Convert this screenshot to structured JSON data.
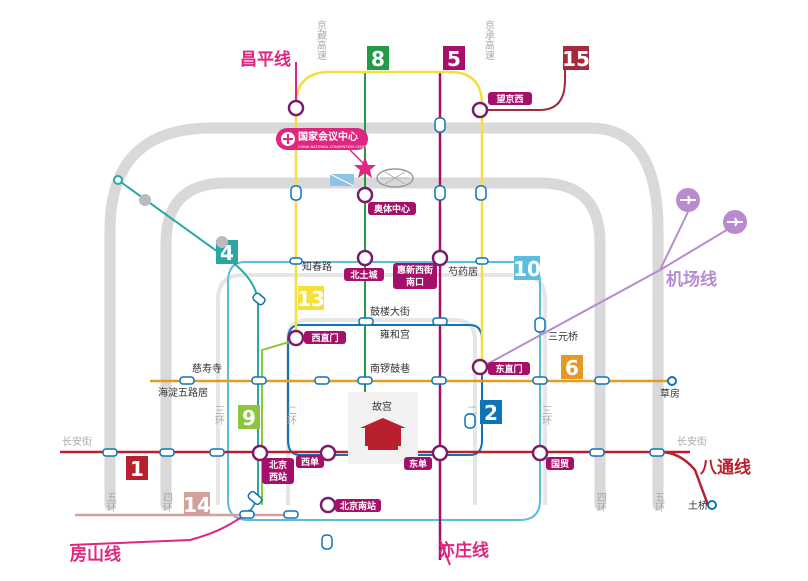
{
  "roads": {
    "west_ring5": "五环",
    "west_ring4": "四环",
    "west_ring3": "三环",
    "west_ring2": "二环",
    "east_ring2": "二环",
    "east_ring3": "三环",
    "east_ring4": "四环",
    "east_ring5": "五环",
    "north_west_expwy": "京藏高速",
    "north_east_expwy": "京承高速",
    "changan_west": "长安街",
    "changan_east": "长安街"
  },
  "lines": {
    "l1": "1",
    "l2": "2",
    "l4": "4",
    "l5": "5",
    "l6": "6",
    "l8": "8",
    "l9": "9",
    "l10": "10",
    "l13": "13",
    "l14": "14",
    "l15": "15",
    "changping": "昌平线",
    "airport": "机场线",
    "batong": "八通线",
    "fangshan": "房山线",
    "yizhuang": "亦庄线"
  },
  "stations": {
    "aoti": "奥体中心",
    "beitucheng": "北土城",
    "huixinxijie_1": "惠新西街",
    "huixinxijie_2": "南口",
    "shaoyaoju": "芍药居",
    "zhichunlu": "知春路",
    "gulou": "鼓楼大街",
    "yonghegong": "雍和宫",
    "sanyuanqiao": "三元桥",
    "xizhimen": "西直门",
    "dongzhimen": "东直门",
    "cishousi": "慈寿寺",
    "haidian5": "海淀五路居",
    "nanluoguxiang": "南锣鼓巷",
    "caofang": "草房",
    "gugong": "故宫",
    "beijingxi_1": "北京",
    "beijingxi_2": "西站",
    "xidan": "西单",
    "dongdan": "东单",
    "guomao": "国贸",
    "beijingnan": "北京南站",
    "tuqiao": "土桥",
    "wangjingxi": "望京西"
  },
  "callout": {
    "name_cn": "国家会议中心",
    "name_en": "CHINA NATIONAL CONVENTION CENTER"
  },
  "colors": {
    "ring_gray": "#d6d6d6",
    "line1": "#b8202e",
    "line2": "#0e74b8",
    "line4": "#2aa7a4",
    "line5": "#a5106b",
    "line6": "#e49a25",
    "line8": "#239a48",
    "line9": "#8cc63e",
    "line10": "#5bbde0",
    "line13": "#f5df3c",
    "line14": "#d2a19c",
    "line15": "#a42a3c",
    "changping": "#e0267f",
    "airport": "#b78ccf",
    "batong": "#b8202e",
    "fangshan": "#e0267f",
    "yizhuang": "#e0267f",
    "station_ring": "#7a1c6a",
    "callout": "#e0267f"
  }
}
